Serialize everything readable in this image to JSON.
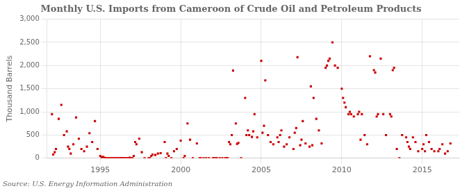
{
  "chart_data": {
    "type": "scatter",
    "title": "Monthly U.S. Imports from Cameroon of Crude Oil and Petroleum Products",
    "y_label": "Thousand Barrels",
    "annotations": [
      "Source: U.S. Energy Information Administration"
    ],
    "color": "#cc0000",
    "marker": "square",
    "grid": true,
    "xlim": [
      1991.7,
      2017.3
    ],
    "xticks": [
      1995,
      2000,
      2005,
      2010,
      2015
    ],
    "ylim": [
      0,
      3000
    ],
    "yticks": [
      0,
      500,
      {
        "value": 1000,
        "label": "1,000"
      },
      {
        "value": 1500,
        "label": "1,500"
      },
      {
        "value": 2000,
        "label": "2,000"
      },
      {
        "value": 2500,
        "label": "2,500"
      },
      {
        "value": 3000,
        "label": "3,000"
      }
    ],
    "x": [
      1992.0,
      1992.08,
      1992.17,
      1992.25,
      1992.42,
      1992.58,
      1992.75,
      1992.92,
      1993.0,
      1993.08,
      1993.17,
      1993.33,
      1993.5,
      1993.67,
      1993.83,
      1994.0,
      1994.17,
      1994.33,
      1994.5,
      1994.67,
      1994.83,
      1995.0,
      1995.08,
      1995.17,
      1995.25,
      1995.33,
      1995.42,
      1995.5,
      1995.58,
      1995.67,
      1995.75,
      1995.83,
      1995.92,
      1996.0,
      1996.08,
      1996.17,
      1996.25,
      1996.33,
      1996.42,
      1996.5,
      1996.58,
      1996.67,
      1996.75,
      1996.83,
      1996.92,
      1997.0,
      1997.08,
      1997.17,
      1997.25,
      1997.42,
      1997.58,
      1997.75,
      1998.0,
      1998.08,
      1998.17,
      1998.25,
      1998.42,
      1998.58,
      1998.75,
      1999.0,
      1999.08,
      1999.17,
      1999.25,
      1999.42,
      1999.58,
      1999.75,
      2000.0,
      2000.17,
      2000.25,
      2000.42,
      2000.58,
      2000.75,
      2001.0,
      2001.17,
      2001.25,
      2001.42,
      2001.58,
      2001.75,
      2002.0,
      2002.08,
      2002.17,
      2002.25,
      2002.42,
      2002.58,
      2002.75,
      2002.83,
      2002.92,
      2003.0,
      2003.08,
      2003.17,
      2003.25,
      2003.42,
      2003.5,
      2003.58,
      2003.75,
      2004.0,
      2004.08,
      2004.17,
      2004.25,
      2004.42,
      2004.5,
      2004.58,
      2004.75,
      2005.0,
      2005.08,
      2005.17,
      2005.25,
      2005.42,
      2005.58,
      2005.75,
      2006.0,
      2006.08,
      2006.17,
      2006.25,
      2006.42,
      2006.58,
      2006.75,
      2007.0,
      2007.08,
      2007.17,
      2007.25,
      2007.42,
      2007.5,
      2007.58,
      2007.75,
      2008.0,
      2008.08,
      2008.17,
      2008.25,
      2008.42,
      2008.58,
      2008.75,
      2009.0,
      2009.08,
      2009.17,
      2009.25,
      2009.42,
      2009.58,
      2009.75,
      2010.0,
      2010.08,
      2010.17,
      2010.25,
      2010.42,
      2010.5,
      2010.58,
      2010.75,
      2011.0,
      2011.08,
      2011.17,
      2011.25,
      2011.42,
      2011.58,
      2011.75,
      2012.0,
      2012.08,
      2012.17,
      2012.25,
      2012.42,
      2012.58,
      2012.75,
      2013.0,
      2013.08,
      2013.17,
      2013.25,
      2013.42,
      2013.58,
      2013.75,
      2014.0,
      2014.08,
      2014.17,
      2014.25,
      2014.42,
      2014.58,
      2014.75,
      2015.0,
      2015.08,
      2015.17,
      2015.25,
      2015.42,
      2015.58,
      2015.75,
      2016.0,
      2016.08,
      2016.25,
      2016.42,
      2016.58,
      2016.75
    ],
    "values": [
      950,
      80,
      130,
      200,
      850,
      1150,
      500,
      580,
      250,
      200,
      100,
      300,
      880,
      420,
      200,
      150,
      250,
      540,
      350,
      800,
      200,
      50,
      20,
      30,
      10,
      5,
      0,
      0,
      0,
      0,
      0,
      0,
      0,
      0,
      0,
      0,
      0,
      5,
      0,
      0,
      0,
      0,
      0,
      10,
      0,
      0,
      50,
      350,
      300,
      420,
      130,
      0,
      0,
      0,
      50,
      80,
      70,
      100,
      110,
      350,
      0,
      100,
      50,
      0,
      150,
      200,
      380,
      0,
      50,
      750,
      400,
      0,
      320,
      0,
      0,
      0,
      0,
      0,
      0,
      0,
      0,
      0,
      0,
      0,
      0,
      0,
      0,
      350,
      300,
      500,
      1890,
      750,
      310,
      330,
      0,
      1300,
      500,
      600,
      500,
      460,
      580,
      950,
      450,
      2100,
      550,
      700,
      1680,
      500,
      350,
      300,
      450,
      350,
      500,
      600,
      250,
      300,
      450,
      200,
      550,
      650,
      2180,
      280,
      400,
      800,
      320,
      250,
      1550,
      280,
      1300,
      850,
      600,
      320,
      1950,
      2000,
      2100,
      2150,
      2500,
      2000,
      1950,
      1500,
      1300,
      1200,
      1100,
      950,
      1000,
      950,
      900,
      950,
      1000,
      400,
      950,
      500,
      300,
      2200,
      1900,
      1850,
      900,
      950,
      2150,
      950,
      500,
      950,
      900,
      1900,
      1950,
      200,
      0,
      500,
      450,
      350,
      250,
      200,
      450,
      350,
      150,
      200,
      300,
      150,
      500,
      350,
      200,
      150,
      150,
      200,
      300,
      100,
      150,
      320
    ]
  }
}
